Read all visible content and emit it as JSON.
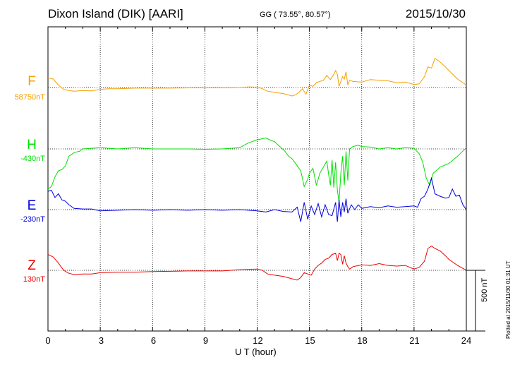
{
  "header": {
    "station": "Dixon Island (DIK)  [AARI]",
    "coords": "GG ( 73.55°,  80.57°)",
    "date": "2015/10/30"
  },
  "footer": {
    "plotted": "Plotted at 2015/11/30 01:31 UT"
  },
  "colors": {
    "F": "#f5a000",
    "H": "#00e000",
    "E": "#0000dd",
    "Z": "#ee0000"
  },
  "chart_data": {
    "type": "line",
    "title": "Dixon Island (DIK)  [AARI]",
    "xlabel": "U T (hour)",
    "ylabel": "",
    "xlim": [
      0,
      24
    ],
    "x_ticks": [
      "0",
      "3",
      "6",
      "9",
      "12",
      "15",
      "18",
      "21",
      "24"
    ],
    "scale_bar": "500 nT",
    "scale_bar_nT": 500,
    "grid": true,
    "series": [
      {
        "name": "F",
        "baseline_label": "58750nT",
        "baseline_nT": 58750,
        "color": "#f5a000",
        "x": [
          0,
          0.3,
          0.6,
          0.9,
          1.2,
          1.5,
          2,
          2.5,
          3,
          3.5,
          4,
          5,
          6,
          7,
          8,
          9,
          10,
          11,
          11.5,
          12,
          12.3,
          12.6,
          13,
          13.5,
          14,
          14.2,
          14.4,
          14.6,
          14.8,
          15,
          15.2,
          15.4,
          15.6,
          15.8,
          16,
          16.2,
          16.4,
          16.5,
          16.6,
          16.7,
          16.8,
          16.9,
          17.0,
          17.1,
          17.2,
          17.3,
          17.5,
          18,
          18.5,
          19,
          19.5,
          20,
          20.5,
          21,
          21.3,
          21.6,
          21.8,
          22,
          22.2,
          22.5,
          22.8,
          23,
          23.5,
          24
        ],
        "y": [
          80,
          70,
          20,
          -15,
          -25,
          -30,
          -25,
          -28,
          -15,
          -10,
          -10,
          -5,
          -5,
          -5,
          -3,
          -3,
          -3,
          0,
          5,
          3,
          -10,
          -30,
          -40,
          -50,
          -70,
          -60,
          -40,
          -10,
          -55,
          20,
          10,
          40,
          50,
          60,
          100,
          65,
          110,
          140,
          110,
          10,
          50,
          90,
          70,
          130,
          20,
          60,
          50,
          45,
          65,
          60,
          55,
          40,
          45,
          25,
          30,
          90,
          170,
          160,
          240,
          210,
          170,
          140,
          70,
          20
        ]
      },
      {
        "name": "H",
        "baseline_label": "-430nT",
        "baseline_nT": -430,
        "color": "#00e000",
        "x": [
          0,
          0.2,
          0.4,
          0.6,
          0.8,
          1.0,
          1.2,
          1.5,
          1.8,
          2.0,
          2.5,
          3,
          4,
          5,
          6,
          7,
          8,
          9,
          10,
          11,
          11.5,
          12,
          12.5,
          12.8,
          13,
          13.3,
          13.6,
          13.8,
          14,
          14.2,
          14.5,
          14.7,
          14.9,
          15.0,
          15.2,
          15.4,
          15.6,
          15.8,
          16,
          16.1,
          16.2,
          16.3,
          16.4,
          16.5,
          16.6,
          16.7,
          16.8,
          16.9,
          17.0,
          17.1,
          17.2,
          17.3,
          17.5,
          17.8,
          18,
          18.5,
          19,
          19.5,
          20,
          20.5,
          21,
          21.3,
          21.5,
          21.7,
          21.9,
          22.1,
          22.5,
          23,
          23.5,
          24
        ],
        "y": [
          -330,
          -310,
          -230,
          -180,
          -170,
          -140,
          -60,
          -30,
          -20,
          0,
          5,
          10,
          0,
          10,
          0,
          0,
          0,
          -3,
          0,
          10,
          50,
          75,
          90,
          70,
          60,
          20,
          -20,
          -60,
          -80,
          -120,
          -180,
          -310,
          -250,
          -200,
          -160,
          -300,
          -200,
          -150,
          -100,
          -210,
          -300,
          -90,
          -320,
          -110,
          -340,
          -440,
          -200,
          -60,
          -300,
          -20,
          -260,
          0,
          20,
          30,
          20,
          15,
          0,
          10,
          0,
          10,
          5,
          -40,
          -110,
          -240,
          -300,
          -200,
          -150,
          -120,
          -60,
          10
        ]
      },
      {
        "name": "E",
        "baseline_label": "-230nT",
        "baseline_nT": -230,
        "color": "#0000dd",
        "x": [
          0,
          0.2,
          0.4,
          0.6,
          0.8,
          1.0,
          1.2,
          1.5,
          2,
          2.5,
          3,
          4,
          5,
          6,
          7,
          8,
          9,
          10,
          11,
          12,
          12.5,
          13,
          13.5,
          14,
          14.3,
          14.5,
          14.7,
          14.9,
          15.1,
          15.3,
          15.5,
          15.7,
          15.9,
          16.1,
          16.3,
          16.5,
          16.6,
          16.7,
          16.8,
          16.9,
          17.0,
          17.1,
          17.2,
          17.4,
          17.6,
          17.8,
          18,
          18.5,
          19,
          19.5,
          20,
          20.5,
          21,
          21.2,
          21.4,
          21.6,
          21.8,
          22.0,
          22.2,
          22.5,
          22.8,
          23,
          23.2,
          23.4,
          23.6,
          23.8,
          24
        ],
        "y": [
          150,
          160,
          100,
          130,
          80,
          70,
          40,
          10,
          5,
          5,
          -10,
          -5,
          0,
          -5,
          0,
          -5,
          0,
          -5,
          0,
          -10,
          -20,
          0,
          -15,
          -20,
          20,
          -100,
          60,
          -80,
          30,
          -40,
          50,
          -60,
          40,
          -40,
          -50,
          60,
          -100,
          80,
          -60,
          60,
          -20,
          90,
          -30,
          40,
          0,
          40,
          10,
          25,
          15,
          30,
          20,
          25,
          30,
          20,
          90,
          110,
          170,
          260,
          130,
          110,
          95,
          100,
          170,
          110,
          120,
          40,
          0
        ]
      },
      {
        "name": "Z",
        "baseline_label": "130nT",
        "baseline_nT": 130,
        "color": "#ee0000",
        "x": [
          0,
          0.3,
          0.6,
          0.9,
          1.2,
          1.5,
          2,
          2.5,
          3,
          4,
          5,
          6,
          7,
          8,
          9,
          10,
          11,
          12,
          12.3,
          12.6,
          13,
          13.5,
          14,
          14.3,
          14.5,
          14.7,
          14.9,
          15.1,
          15.3,
          15.5,
          15.7,
          15.9,
          16.1,
          16.3,
          16.5,
          16.6,
          16.7,
          16.8,
          16.9,
          17.0,
          17.1,
          17.2,
          17.3,
          17.5,
          18,
          18.5,
          19,
          19.5,
          20,
          20.5,
          21,
          21.3,
          21.6,
          21.8,
          22,
          22.2,
          22.5,
          22.8,
          23,
          23.5,
          24
        ],
        "y": [
          130,
          110,
          60,
          0,
          -25,
          -35,
          -30,
          -30,
          -20,
          -15,
          -15,
          -10,
          -8,
          -5,
          -5,
          -5,
          5,
          10,
          0,
          -30,
          -40,
          -50,
          -70,
          -80,
          -60,
          -20,
          -30,
          -40,
          10,
          40,
          60,
          90,
          100,
          130,
          140,
          80,
          140,
          130,
          50,
          120,
          60,
          30,
          10,
          30,
          45,
          40,
          55,
          40,
          35,
          40,
          10,
          25,
          75,
          180,
          200,
          180,
          160,
          120,
          90,
          40,
          0
        ]
      }
    ]
  }
}
